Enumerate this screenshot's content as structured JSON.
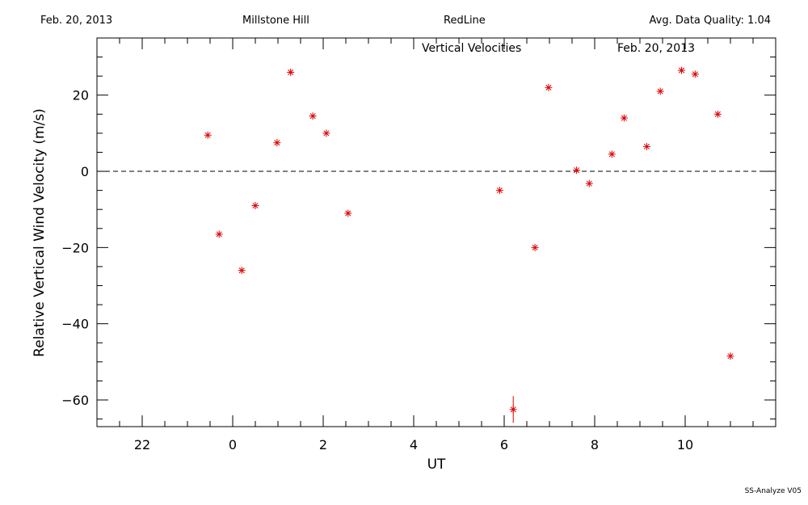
{
  "header": {
    "date": "Feb. 20, 2013",
    "site": "Millstone Hill",
    "instrument": "RedLine",
    "quality": "Avg. Data Quality: 1.04"
  },
  "footer": "SS-Analyze V05",
  "chart_data": {
    "type": "scatter",
    "title": "Vertical Velocities",
    "subtitle": "Feb. 20, 2013",
    "xlabel": "UT",
    "ylabel": "Relative Vertical Wind Velocity (m/s)",
    "xlim": [
      -3,
      12
    ],
    "ylim": [
      -67,
      35
    ],
    "x_major_ticks": [
      22,
      0,
      2,
      4,
      6,
      8,
      10
    ],
    "x_major_ticks_ut": [
      -2,
      0,
      2,
      4,
      6,
      8,
      10
    ],
    "y_major_ticks": [
      -60,
      -40,
      -20,
      0,
      20
    ],
    "zero_line": "dashed",
    "marker": "asterisk",
    "marker_color": "#dd0000",
    "series": [
      {
        "points": [
          {
            "x": -0.55,
            "y": 9.5
          },
          {
            "x": -0.3,
            "y": -16.5
          },
          {
            "x": 0.2,
            "y": -26
          },
          {
            "x": 0.5,
            "y": -9
          },
          {
            "x": 0.98,
            "y": 7.5
          },
          {
            "x": 1.28,
            "y": 26
          },
          {
            "x": 1.77,
            "y": 14.5
          },
          {
            "x": 2.07,
            "y": 10
          },
          {
            "x": 2.55,
            "y": -11
          },
          {
            "x": 5.9,
            "y": -5
          },
          {
            "x": 6.2,
            "y": -62.5,
            "err": 3.5
          },
          {
            "x": 6.68,
            "y": -20
          },
          {
            "x": 6.98,
            "y": 22
          },
          {
            "x": 7.6,
            "y": 0.3
          },
          {
            "x": 7.88,
            "y": -3.2
          },
          {
            "x": 8.38,
            "y": 4.5
          },
          {
            "x": 8.65,
            "y": 14
          },
          {
            "x": 9.15,
            "y": 6.5
          },
          {
            "x": 9.45,
            "y": 21
          },
          {
            "x": 9.92,
            "y": 26.5
          },
          {
            "x": 10.22,
            "y": 25.5
          },
          {
            "x": 10.72,
            "y": 15
          },
          {
            "x": 11.0,
            "y": -48.5
          }
        ]
      }
    ]
  }
}
